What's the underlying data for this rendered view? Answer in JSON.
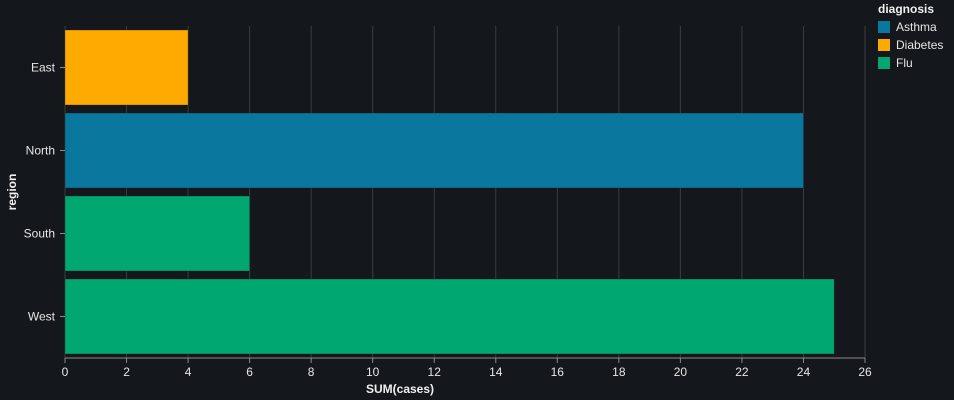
{
  "chart_data": {
    "type": "bar",
    "orientation": "horizontal",
    "xlabel": "SUM(cases)",
    "ylabel": "region",
    "xlim": [
      0,
      26
    ],
    "xticks": [
      0,
      2,
      4,
      6,
      8,
      10,
      12,
      14,
      16,
      18,
      20,
      22,
      24,
      26
    ],
    "grid": true,
    "categories": [
      "East",
      "North",
      "South",
      "West"
    ],
    "bars": [
      {
        "category": "East",
        "diagnosis": "Diabetes",
        "value": 4
      },
      {
        "category": "North",
        "diagnosis": "Asthma",
        "value": 24
      },
      {
        "category": "South",
        "diagnosis": "Flu",
        "value": 6
      },
      {
        "category": "West",
        "diagnosis": "Flu",
        "value": 25
      }
    ],
    "legend": {
      "title": "diagnosis",
      "placement": "top-right",
      "entries": [
        {
          "name": "Asthma",
          "color": "#0a789e"
        },
        {
          "name": "Diabetes",
          "color": "#ffaa00"
        },
        {
          "name": "Flu",
          "color": "#00a770"
        }
      ]
    }
  }
}
